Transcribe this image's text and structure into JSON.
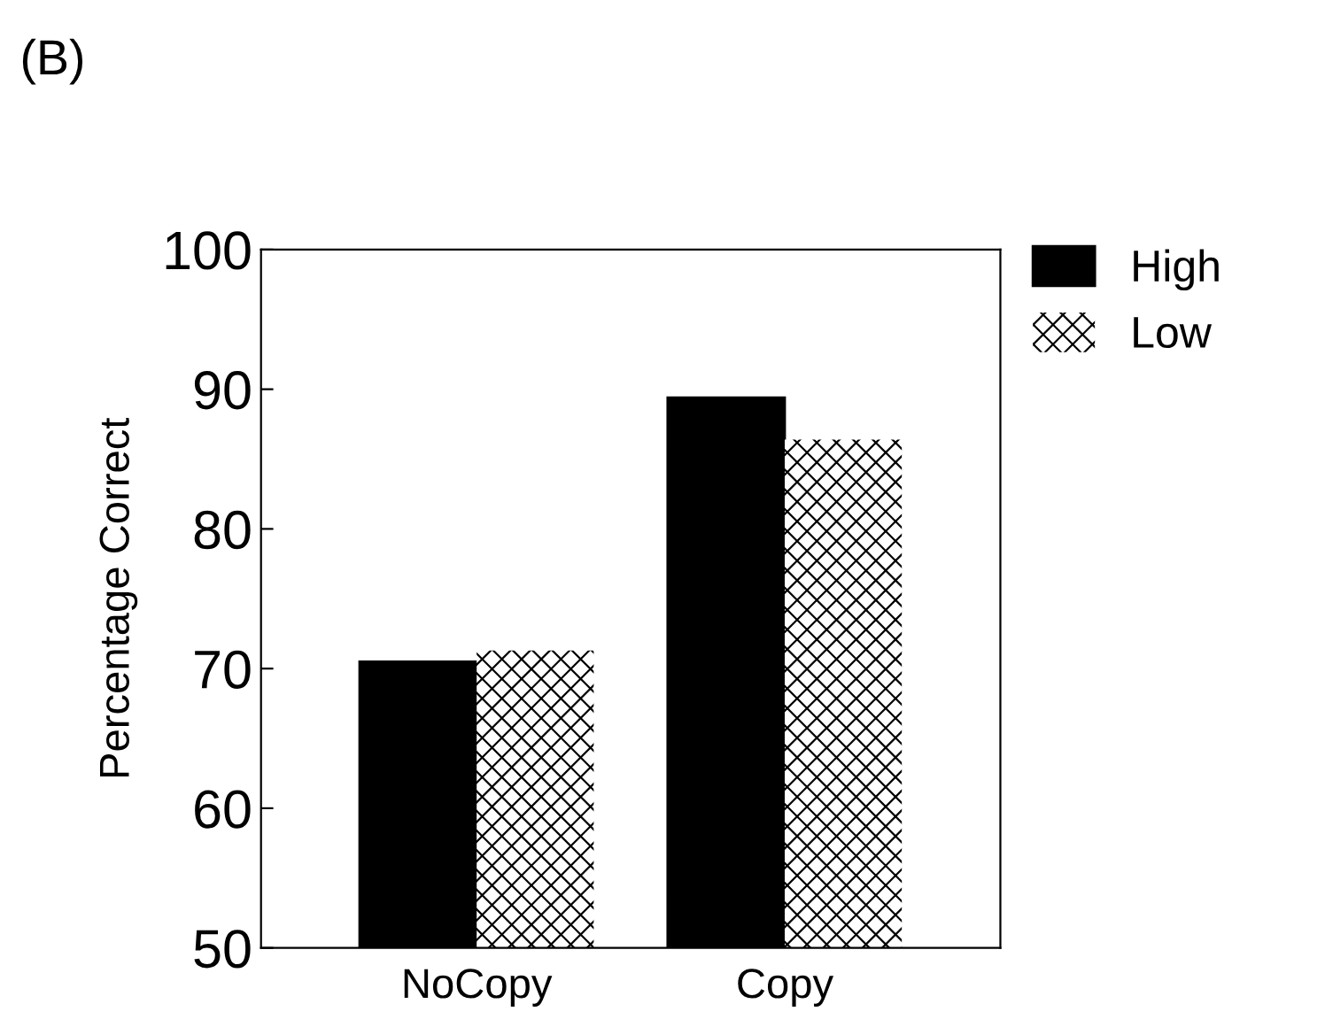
{
  "chart_data": {
    "type": "bar",
    "title": "(B)",
    "ylabel": "Percentage Correct",
    "categories": [
      "NoCopy",
      "Copy"
    ],
    "series": [
      {
        "name": "High",
        "color": "#000000",
        "values": [
          70.5,
          89.4
        ]
      },
      {
        "name": "Low",
        "color": "#ffffff",
        "values": [
          71.3,
          86.4
        ]
      }
    ],
    "ylim": [
      50,
      100
    ],
    "yticks": [
      50,
      60,
      70,
      80,
      90,
      100
    ],
    "grid": false,
    "legend": "top right"
  }
}
